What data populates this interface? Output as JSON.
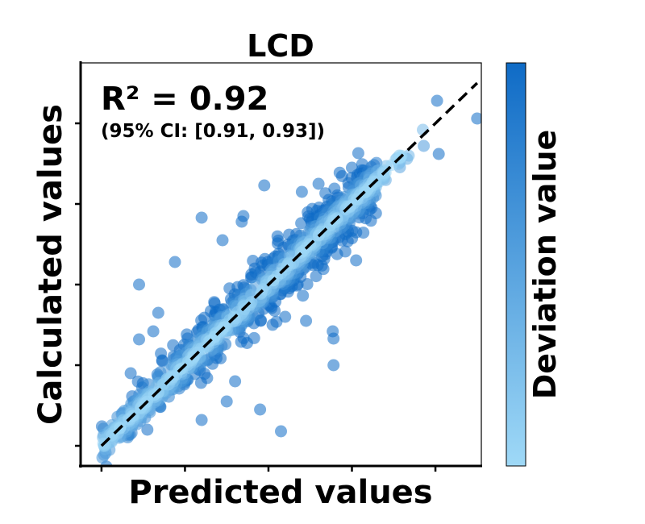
{
  "chart_data": {
    "type": "scatter",
    "title": "LCD",
    "xlabel": "Predicted values",
    "ylabel": "Calculated values",
    "colorbar_label": "Deviation value",
    "annotation": {
      "r2_text": "R² = 0.92",
      "ci_text": "(95% CI: [0.91, 0.93])"
    },
    "r_squared": 0.92,
    "ci": [
      0.91,
      0.93
    ],
    "xlim": [
      -0.25,
      4.55
    ],
    "ylim": [
      -0.25,
      4.75
    ],
    "tick_labels_visible": false,
    "xticks": [
      0,
      1,
      2,
      3,
      4
    ],
    "yticks": [
      0,
      1,
      2,
      3,
      4
    ],
    "identity_line": {
      "style": "dashed",
      "color": "#000000",
      "x": [
        0,
        4.5
      ],
      "y": [
        0,
        4.5
      ]
    },
    "colors": {
      "low_deviation": "#9fd9f7",
      "high_deviation": "#0f6bc6",
      "point_alpha": 0.55
    },
    "outliers": [
      {
        "x": 4.02,
        "y": 4.28
      },
      {
        "x": 4.5,
        "y": 4.06
      },
      {
        "x": 3.86,
        "y": 3.72
      },
      {
        "x": 3.66,
        "y": 3.56
      },
      {
        "x": 3.0,
        "y": 3.45
      },
      {
        "x": 3.2,
        "y": 3.3
      },
      {
        "x": 1.95,
        "y": 3.23
      },
      {
        "x": 2.4,
        "y": 3.15
      },
      {
        "x": 2.6,
        "y": 3.25
      },
      {
        "x": 1.2,
        "y": 2.83
      },
      {
        "x": 1.7,
        "y": 2.85
      },
      {
        "x": 1.45,
        "y": 2.55
      },
      {
        "x": 1.68,
        "y": 2.78
      },
      {
        "x": 0.88,
        "y": 2.28
      },
      {
        "x": 0.45,
        "y": 2.0
      },
      {
        "x": 0.68,
        "y": 1.65
      },
      {
        "x": 0.62,
        "y": 1.42
      },
      {
        "x": 0.45,
        "y": 1.32
      },
      {
        "x": 1.9,
        "y": 0.45
      },
      {
        "x": 2.15,
        "y": 0.18
      },
      {
        "x": 2.77,
        "y": 1.42
      },
      {
        "x": 2.78,
        "y": 1.33
      },
      {
        "x": 2.78,
        "y": 1.0
      },
      {
        "x": 1.5,
        "y": 0.55
      },
      {
        "x": 1.2,
        "y": 0.32
      },
      {
        "x": 1.0,
        "y": 0.9
      },
      {
        "x": 0.55,
        "y": 0.2
      },
      {
        "x": 1.6,
        "y": 0.8
      },
      {
        "x": 2.3,
        "y": 2.05
      },
      {
        "x": 2.2,
        "y": 1.6
      },
      {
        "x": 3.05,
        "y": 2.3
      },
      {
        "x": 2.5,
        "y": 2.5
      },
      {
        "x": 0.9,
        "y": 1.1
      },
      {
        "x": 2.35,
        "y": 2.0
      },
      {
        "x": 2.45,
        "y": 1.55
      },
      {
        "x": 0.35,
        "y": 0.9
      },
      {
        "x": 3.68,
        "y": 3.6
      },
      {
        "x": 4.04,
        "y": 3.62
      },
      {
        "x": 3.85,
        "y": 3.92
      }
    ],
    "bulk_cluster": {
      "description_of_distribution": "dense band of points along the identity line from about 0 to 3.3",
      "x_range": [
        0,
        3.3
      ],
      "spread": 0.35,
      "count": 900
    }
  }
}
